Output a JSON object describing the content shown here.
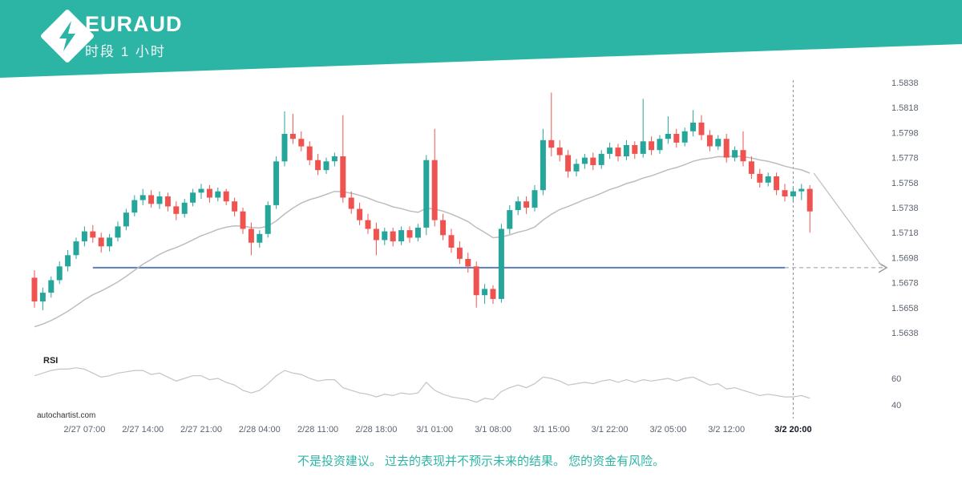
{
  "header": {
    "symbol": "EURAUD",
    "period": "时段 1 小时",
    "accent": "#2cb5a4"
  },
  "watermark": "autochartist.com",
  "disclaimer": "不是投资建议。 过去的表现并不预示未来的结果。 您的资金有风险。",
  "chart_data": {
    "type": "candlestick",
    "symbol": "EURAUD",
    "timeframe": "1 小时",
    "colors": {
      "up": "#26a69a",
      "down": "#ef5350",
      "ma": "#bdbdbd",
      "rsi": "#c4c4c4",
      "support": "#5b7fbd"
    },
    "price_axis": {
      "max": 1.5838,
      "min": 1.5638,
      "ticks": [
        1.5838,
        1.5818,
        1.5798,
        1.5778,
        1.5758,
        1.5738,
        1.5718,
        1.5698,
        1.5678,
        1.5658,
        1.5638
      ]
    },
    "x_axis": {
      "labels": [
        {
          "index": 6,
          "label": "2/27 07:00"
        },
        {
          "index": 13,
          "label": "2/27 14:00"
        },
        {
          "index": 20,
          "label": "2/27 21:00"
        },
        {
          "index": 27,
          "label": "2/28 04:00"
        },
        {
          "index": 34,
          "label": "2/28 11:00"
        },
        {
          "index": 41,
          "label": "2/28 18:00"
        },
        {
          "index": 48,
          "label": "3/1 01:00"
        },
        {
          "index": 55,
          "label": "3/1 08:00"
        },
        {
          "index": 62,
          "label": "3/1 15:00"
        },
        {
          "index": 69,
          "label": "3/1 22:00"
        },
        {
          "index": 76,
          "label": "3/2 05:00"
        },
        {
          "index": 83,
          "label": "3/2 12:00"
        },
        {
          "index": 91,
          "label": "3/2 20:00",
          "strong": true
        }
      ]
    },
    "support_line": {
      "value": 1.569,
      "from_index": 7,
      "to_index": 90
    },
    "marker_time": {
      "index": 91,
      "label": "3/2 20:00"
    },
    "forecast": {
      "target_value": 1.569
    },
    "candles": [
      [
        1.5682,
        1.5688,
        1.5658,
        1.5663
      ],
      [
        1.5663,
        1.5674,
        1.5656,
        1.567
      ],
      [
        1.567,
        1.5683,
        1.5666,
        1.568
      ],
      [
        1.568,
        1.5695,
        1.5677,
        1.5691
      ],
      [
        1.5691,
        1.5704,
        1.5687,
        1.57
      ],
      [
        1.57,
        1.5714,
        1.5697,
        1.5711
      ],
      [
        1.5711,
        1.5723,
        1.5707,
        1.5719
      ],
      [
        1.5719,
        1.5724,
        1.571,
        1.5714
      ],
      [
        1.5714,
        1.5718,
        1.5702,
        1.5707
      ],
      [
        1.5707,
        1.5717,
        1.5703,
        1.5714
      ],
      [
        1.5714,
        1.5727,
        1.5711,
        1.5723
      ],
      [
        1.5723,
        1.5737,
        1.572,
        1.5734
      ],
      [
        1.5734,
        1.5748,
        1.5731,
        1.5744
      ],
      [
        1.5744,
        1.5753,
        1.574,
        1.5748
      ],
      [
        1.5748,
        1.5752,
        1.5738,
        1.5741
      ],
      [
        1.5741,
        1.5751,
        1.5737,
        1.5747
      ],
      [
        1.5747,
        1.575,
        1.5735,
        1.5739
      ],
      [
        1.5739,
        1.5743,
        1.5728,
        1.5733
      ],
      [
        1.5733,
        1.5745,
        1.573,
        1.5742
      ],
      [
        1.5742,
        1.5753,
        1.5739,
        1.575
      ],
      [
        1.575,
        1.5757,
        1.5745,
        1.5753
      ],
      [
        1.5753,
        1.5756,
        1.5742,
        1.5746
      ],
      [
        1.5746,
        1.5754,
        1.5743,
        1.5751
      ],
      [
        1.5751,
        1.5753,
        1.574,
        1.5743
      ],
      [
        1.5743,
        1.5746,
        1.5731,
        1.5735
      ],
      [
        1.5735,
        1.5738,
        1.5717,
        1.5721
      ],
      [
        1.5721,
        1.5726,
        1.57,
        1.571
      ],
      [
        1.571,
        1.572,
        1.5706,
        1.5717
      ],
      [
        1.5717,
        1.5743,
        1.5714,
        1.574
      ],
      [
        1.574,
        1.5779,
        1.5737,
        1.5775
      ],
      [
        1.5775,
        1.5815,
        1.5771,
        1.5797
      ],
      [
        1.5797,
        1.5813,
        1.5789,
        1.5793
      ],
      [
        1.5793,
        1.5799,
        1.5783,
        1.5787
      ],
      [
        1.5787,
        1.5791,
        1.5772,
        1.5776
      ],
      [
        1.5776,
        1.5781,
        1.5764,
        1.5768
      ],
      [
        1.5768,
        1.5778,
        1.5765,
        1.5775
      ],
      [
        1.5775,
        1.5782,
        1.5771,
        1.5779
      ],
      [
        1.5779,
        1.5812,
        1.5742,
        1.5746
      ],
      [
        1.5746,
        1.5751,
        1.5733,
        1.5737
      ],
      [
        1.5737,
        1.5742,
        1.5724,
        1.5728
      ],
      [
        1.5728,
        1.5733,
        1.5717,
        1.5721
      ],
      [
        1.5721,
        1.5726,
        1.57,
        1.5712
      ],
      [
        1.5712,
        1.5722,
        1.5708,
        1.5719
      ],
      [
        1.5719,
        1.5722,
        1.5707,
        1.5711
      ],
      [
        1.5711,
        1.5723,
        1.5708,
        1.572
      ],
      [
        1.572,
        1.5723,
        1.571,
        1.5714
      ],
      [
        1.5714,
        1.5725,
        1.5711,
        1.5722
      ],
      [
        1.5722,
        1.578,
        1.5716,
        1.5776
      ],
      [
        1.5776,
        1.5801,
        1.5723,
        1.5728
      ],
      [
        1.5728,
        1.5733,
        1.5712,
        1.5716
      ],
      [
        1.5716,
        1.5721,
        1.5702,
        1.5706
      ],
      [
        1.5706,
        1.5711,
        1.5693,
        1.5697
      ],
      [
        1.5697,
        1.5702,
        1.5686,
        1.5691
      ],
      [
        1.5691,
        1.5695,
        1.5658,
        1.5668
      ],
      [
        1.5668,
        1.5677,
        1.5661,
        1.5673
      ],
      [
        1.5673,
        1.5676,
        1.5661,
        1.5665
      ],
      [
        1.5665,
        1.5725,
        1.5662,
        1.5721
      ],
      [
        1.5721,
        1.574,
        1.5717,
        1.5736
      ],
      [
        1.5736,
        1.5747,
        1.5732,
        1.5743
      ],
      [
        1.5743,
        1.5747,
        1.5733,
        1.5738
      ],
      [
        1.5738,
        1.5756,
        1.5735,
        1.5752
      ],
      [
        1.5752,
        1.5801,
        1.5748,
        1.5792
      ],
      [
        1.5792,
        1.583,
        1.5779,
        1.5786
      ],
      [
        1.5786,
        1.5792,
        1.5775,
        1.578
      ],
      [
        1.578,
        1.5784,
        1.5762,
        1.5767
      ],
      [
        1.5767,
        1.5777,
        1.5763,
        1.5773
      ],
      [
        1.5773,
        1.5781,
        1.5769,
        1.5778
      ],
      [
        1.5778,
        1.5782,
        1.5768,
        1.5772
      ],
      [
        1.5772,
        1.5784,
        1.5769,
        1.5781
      ],
      [
        1.5781,
        1.579,
        1.5777,
        1.5786
      ],
      [
        1.5786,
        1.5789,
        1.5775,
        1.5779
      ],
      [
        1.5779,
        1.5792,
        1.5776,
        1.5788
      ],
      [
        1.5788,
        1.5791,
        1.5777,
        1.5781
      ],
      [
        1.5781,
        1.5825,
        1.5778,
        1.5791
      ],
      [
        1.5791,
        1.5795,
        1.578,
        1.5784
      ],
      [
        1.5784,
        1.5796,
        1.5781,
        1.5793
      ],
      [
        1.5793,
        1.5811,
        1.5789,
        1.5797
      ],
      [
        1.5797,
        1.5801,
        1.5786,
        1.579
      ],
      [
        1.579,
        1.5802,
        1.5787,
        1.5799
      ],
      [
        1.5799,
        1.5816,
        1.5795,
        1.5806
      ],
      [
        1.5806,
        1.5812,
        1.5792,
        1.5796
      ],
      [
        1.5796,
        1.58,
        1.5783,
        1.5787
      ],
      [
        1.5787,
        1.5796,
        1.5784,
        1.5793
      ],
      [
        1.5793,
        1.5797,
        1.5774,
        1.5778
      ],
      [
        1.5778,
        1.5787,
        1.5775,
        1.5784
      ],
      [
        1.5784,
        1.5799,
        1.5771,
        1.5775
      ],
      [
        1.5775,
        1.5779,
        1.5761,
        1.5765
      ],
      [
        1.5765,
        1.5769,
        1.5754,
        1.5758
      ],
      [
        1.5758,
        1.5766,
        1.5755,
        1.5763
      ],
      [
        1.5763,
        1.5766,
        1.5748,
        1.5752
      ],
      [
        1.5752,
        1.5757,
        1.5743,
        1.5747
      ],
      [
        1.5747,
        1.5754,
        1.5743,
        1.5751
      ],
      [
        1.5751,
        1.5757,
        1.5744,
        1.5753
      ],
      [
        1.5753,
        1.5756,
        1.5718,
        1.5735
      ]
    ],
    "rsi": {
      "label": "RSI",
      "ticks": [
        60,
        40
      ],
      "values": [
        62,
        64,
        66,
        67,
        67,
        68,
        67,
        64,
        61,
        62,
        64,
        65,
        66,
        66,
        63,
        64,
        61,
        58,
        60,
        62,
        62,
        59,
        60,
        57,
        55,
        51,
        49,
        51,
        56,
        62,
        66,
        64,
        63,
        60,
        58,
        59,
        59,
        53,
        51,
        49,
        48,
        46,
        48,
        47,
        49,
        48,
        49,
        57,
        51,
        48,
        46,
        45,
        44,
        42,
        45,
        44,
        50,
        53,
        55,
        53,
        56,
        61,
        60,
        58,
        55,
        56,
        57,
        56,
        58,
        59,
        57,
        59,
        57,
        59,
        58,
        59,
        60,
        58,
        60,
        61,
        58,
        55,
        56,
        52,
        53,
        51,
        49,
        47,
        48,
        47,
        46,
        46,
        47,
        45
      ]
    }
  }
}
